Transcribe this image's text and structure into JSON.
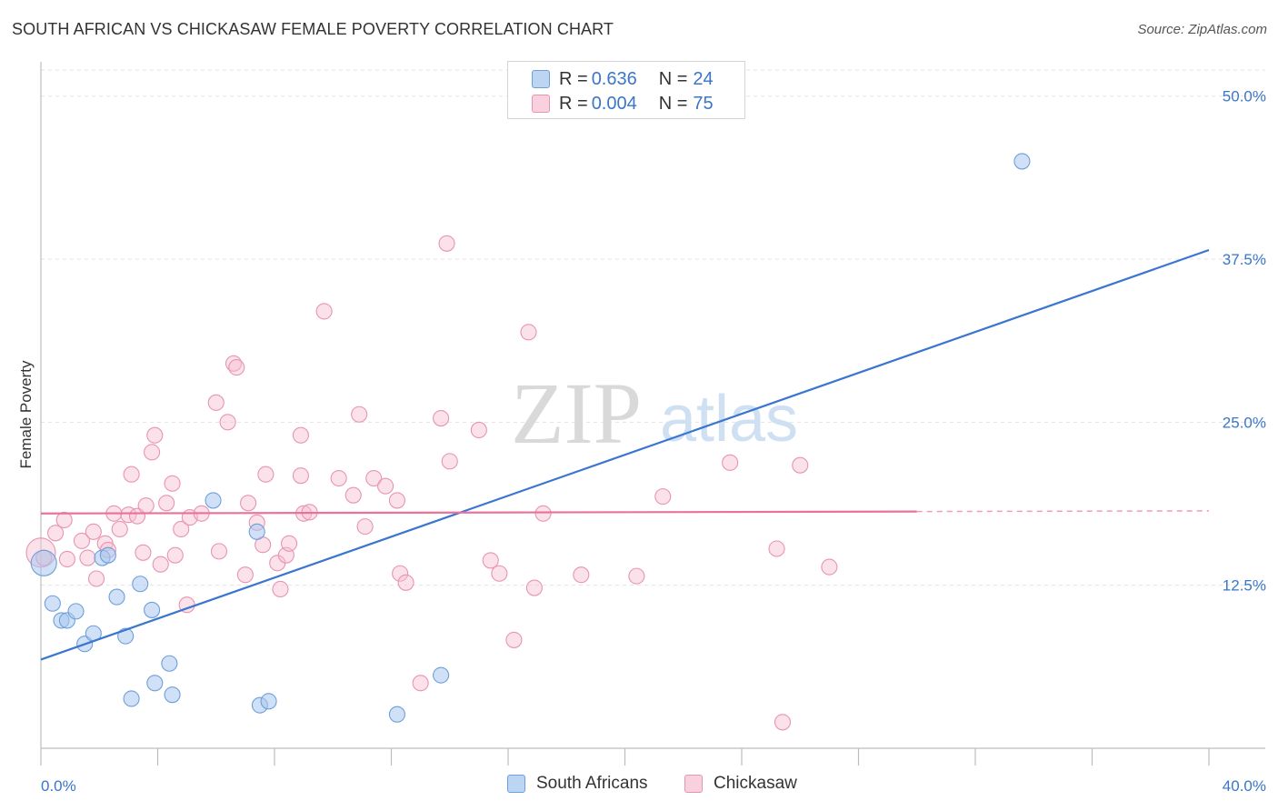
{
  "header": {
    "title": "SOUTH AFRICAN VS CHICKASAW FEMALE POVERTY CORRELATION CHART",
    "source": "Source: ZipAtlas.com"
  },
  "watermark": {
    "zip": "ZIP",
    "atlas": "atlas"
  },
  "legend": {
    "rows": [
      {
        "r_label": "R =",
        "r_value": "0.636",
        "n_label": "N =",
        "n_value": "24"
      },
      {
        "r_label": "R =",
        "r_value": "0.004",
        "n_label": "N =",
        "n_value": "75"
      }
    ]
  },
  "bottom_legend": {
    "south_africans": "South Africans",
    "chickasaw": "Chickasaw"
  },
  "colors": {
    "blue_fill": "#a9c8f0",
    "blue_stroke": "#6e9fd8",
    "blue_line": "#3a76d0",
    "pink_fill": "#f6bfd1",
    "pink_stroke": "#e894b0",
    "pink_line": "#e8729a",
    "tick_label": "#3a76c9"
  },
  "chart_data": {
    "type": "scatter",
    "title": "SOUTH AFRICAN VS CHICKASAW FEMALE POVERTY CORRELATION CHART",
    "xlabel": "",
    "ylabel": "Female Poverty",
    "xlim": [
      0,
      40
    ],
    "ylim": [
      0,
      52
    ],
    "x_tick_labels": [
      "0.0%",
      "40.0%"
    ],
    "y_ticks": [
      {
        "value": 12.5,
        "label": "12.5%"
      },
      {
        "value": 25.0,
        "label": "25.0%"
      },
      {
        "value": 37.5,
        "label": "37.5%"
      },
      {
        "value": 50.0,
        "label": "50.0%"
      }
    ],
    "series": [
      {
        "name": "South Africans",
        "points": [
          [
            0.1,
            14.2
          ],
          [
            0.4,
            11.1
          ],
          [
            0.7,
            9.8
          ],
          [
            0.9,
            9.8
          ],
          [
            1.2,
            10.5
          ],
          [
            1.5,
            8.0
          ],
          [
            1.8,
            8.8
          ],
          [
            2.1,
            14.6
          ],
          [
            2.3,
            14.8
          ],
          [
            2.6,
            11.6
          ],
          [
            2.9,
            8.6
          ],
          [
            3.1,
            3.8
          ],
          [
            3.4,
            12.6
          ],
          [
            3.8,
            10.6
          ],
          [
            3.9,
            5.0
          ],
          [
            4.4,
            6.5
          ],
          [
            4.5,
            4.1
          ],
          [
            5.9,
            19.0
          ],
          [
            7.4,
            16.6
          ],
          [
            7.5,
            3.3
          ],
          [
            7.8,
            3.6
          ],
          [
            12.2,
            2.6
          ],
          [
            13.7,
            5.6
          ],
          [
            33.6,
            45.0
          ]
        ],
        "trend": {
          "x": [
            0,
            40
          ],
          "y": [
            6.8,
            38.2
          ]
        }
      },
      {
        "name": "Chickasaw",
        "points": [
          [
            0.0,
            15.0
          ],
          [
            0.1,
            14.6
          ],
          [
            0.5,
            16.5
          ],
          [
            0.8,
            17.5
          ],
          [
            0.9,
            14.5
          ],
          [
            1.4,
            15.9
          ],
          [
            1.6,
            14.6
          ],
          [
            1.8,
            16.6
          ],
          [
            1.9,
            13.0
          ],
          [
            2.2,
            15.7
          ],
          [
            2.3,
            15.2
          ],
          [
            2.5,
            18.0
          ],
          [
            2.7,
            16.8
          ],
          [
            3.0,
            17.9
          ],
          [
            3.1,
            21.0
          ],
          [
            3.3,
            17.8
          ],
          [
            3.5,
            15.0
          ],
          [
            3.6,
            18.6
          ],
          [
            3.8,
            22.7
          ],
          [
            3.9,
            24.0
          ],
          [
            4.1,
            14.1
          ],
          [
            4.3,
            18.8
          ],
          [
            4.5,
            20.3
          ],
          [
            4.6,
            14.8
          ],
          [
            4.8,
            16.8
          ],
          [
            5.0,
            11.0
          ],
          [
            5.1,
            17.7
          ],
          [
            5.5,
            18.0
          ],
          [
            6.0,
            26.5
          ],
          [
            6.1,
            15.1
          ],
          [
            6.4,
            25.0
          ],
          [
            6.6,
            29.5
          ],
          [
            6.7,
            29.2
          ],
          [
            7.0,
            13.3
          ],
          [
            7.1,
            18.8
          ],
          [
            7.4,
            17.3
          ],
          [
            7.6,
            15.6
          ],
          [
            7.7,
            21.0
          ],
          [
            8.1,
            14.2
          ],
          [
            8.2,
            12.2
          ],
          [
            8.4,
            14.8
          ],
          [
            8.5,
            15.7
          ],
          [
            8.9,
            20.9
          ],
          [
            8.9,
            24.0
          ],
          [
            9.0,
            18.0
          ],
          [
            9.2,
            18.1
          ],
          [
            9.7,
            33.5
          ],
          [
            10.2,
            20.7
          ],
          [
            10.7,
            19.4
          ],
          [
            10.9,
            25.6
          ],
          [
            11.1,
            17.0
          ],
          [
            11.4,
            20.7
          ],
          [
            11.8,
            20.1
          ],
          [
            12.2,
            19.0
          ],
          [
            12.3,
            13.4
          ],
          [
            12.5,
            12.7
          ],
          [
            13.0,
            5.0
          ],
          [
            13.7,
            25.3
          ],
          [
            13.9,
            38.7
          ],
          [
            14.0,
            22.0
          ],
          [
            15.0,
            24.4
          ],
          [
            15.4,
            14.4
          ],
          [
            15.7,
            13.4
          ],
          [
            16.2,
            8.3
          ],
          [
            16.7,
            31.9
          ],
          [
            16.9,
            12.3
          ],
          [
            17.2,
            18.0
          ],
          [
            18.5,
            13.3
          ],
          [
            20.4,
            13.2
          ],
          [
            21.3,
            19.3
          ],
          [
            23.6,
            21.9
          ],
          [
            25.2,
            15.3
          ],
          [
            25.4,
            2.0
          ],
          [
            26.0,
            21.7
          ],
          [
            27.0,
            13.9
          ]
        ],
        "trend": {
          "x": [
            0,
            40
          ],
          "y": [
            18.0,
            18.2
          ],
          "solid_until_x": 30.0
        }
      }
    ]
  }
}
